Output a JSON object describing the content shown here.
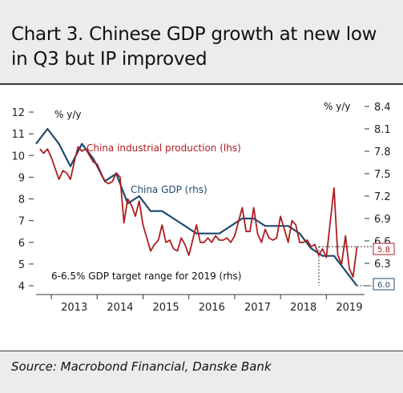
{
  "header": {
    "title": "Chart 3. Chinese GDP growth at new low in Q3 but IP improved"
  },
  "footer": {
    "source": "Source: Macrobond Financial, Danske Bank"
  },
  "colors": {
    "ip_line": "#b01c20",
    "gdp_line": "#1f4a6e",
    "panel_bg": "#ececec"
  },
  "chart_data": {
    "type": "line",
    "title": "Chart 3. Chinese GDP growth at new low in Q3 but IP improved",
    "left_axis": {
      "unit_label": "% y/y",
      "ylim": [
        4,
        12
      ],
      "ticks": [
        "4",
        "5",
        "6",
        "7",
        "8",
        "9",
        "10",
        "11",
        "12"
      ]
    },
    "right_axis": {
      "unit_label": "% y/y",
      "ylim": [
        6.0,
        8.4
      ],
      "ticks": [
        "6.3",
        "6.6",
        "6.9",
        "7.2",
        "7.5",
        "7.8",
        "8.1",
        "8.4"
      ]
    },
    "x_axis": {
      "tick_labels": [
        "2013",
        "2014",
        "2015",
        "2016",
        "2017",
        "2018",
        "2019"
      ],
      "grid": false
    },
    "annotations": {
      "ip_label": "China industrial production (lhs)",
      "gdp_label": "China GDP (rhs)",
      "target_label": "6-6.5% GDP target range for 2019 (rhs)",
      "ip_last_flag": "5.8",
      "gdp_last_flag": "6.0"
    },
    "series": [
      {
        "name": "China industrial production (lhs)",
        "axis": "left",
        "x": [
          "2012-10",
          "2012-11",
          "2012-12",
          "2013-01",
          "2013-03",
          "2013-04",
          "2013-05",
          "2013-06",
          "2013-07",
          "2013-08",
          "2013-09",
          "2013-10",
          "2013-11",
          "2013-12",
          "2014-01",
          "2014-03",
          "2014-04",
          "2014-05",
          "2014-06",
          "2014-07",
          "2014-08",
          "2014-09",
          "2014-10",
          "2014-11",
          "2014-12",
          "2015-01",
          "2015-03",
          "2015-04",
          "2015-05",
          "2015-06",
          "2015-07",
          "2015-08",
          "2015-09",
          "2015-10",
          "2015-11",
          "2015-12",
          "2016-01",
          "2016-03",
          "2016-04",
          "2016-05",
          "2016-06",
          "2016-07",
          "2016-08",
          "2016-09",
          "2016-10",
          "2016-11",
          "2016-12",
          "2017-01",
          "2017-03",
          "2017-04",
          "2017-05",
          "2017-06",
          "2017-07",
          "2017-08",
          "2017-09",
          "2017-10",
          "2017-11",
          "2017-12",
          "2018-01",
          "2018-03",
          "2018-04",
          "2018-05",
          "2018-06",
          "2018-07",
          "2018-08",
          "2018-09",
          "2018-10",
          "2018-11",
          "2018-12",
          "2019-01",
          "2019-03",
          "2019-04",
          "2019-05",
          "2019-06",
          "2019-07",
          "2019-08",
          "2019-09"
        ],
        "values": [
          10.3,
          10.1,
          10.3,
          9.9,
          8.9,
          9.3,
          9.2,
          8.9,
          9.7,
          10.4,
          10.2,
          10.3,
          10.0,
          9.7,
          9.6,
          8.8,
          8.7,
          8.8,
          9.2,
          9.0,
          6.9,
          8.0,
          7.7,
          7.2,
          7.9,
          6.8,
          5.6,
          5.9,
          6.1,
          6.8,
          6.0,
          6.1,
          5.7,
          5.6,
          6.2,
          5.9,
          5.4,
          6.8,
          6.0,
          6.0,
          6.2,
          6.0,
          6.3,
          6.1,
          6.1,
          6.2,
          6.0,
          6.3,
          7.6,
          6.5,
          6.5,
          7.6,
          6.4,
          6.0,
          6.6,
          6.2,
          6.1,
          6.2,
          7.2,
          6.0,
          7.0,
          6.8,
          6.0,
          6.0,
          6.1,
          5.8,
          5.9,
          5.4,
          5.7,
          5.3,
          8.5,
          5.4,
          5.0,
          6.3,
          4.8,
          4.4,
          5.8
        ]
      },
      {
        "name": "China GDP (rhs)",
        "axis": "right",
        "x": [
          "2012-09",
          "2012-12",
          "2013-03",
          "2013-06",
          "2013-09",
          "2013-12",
          "2014-03",
          "2014-06",
          "2014-09",
          "2014-12",
          "2015-03",
          "2015-06",
          "2015-09",
          "2015-12",
          "2016-03",
          "2016-06",
          "2016-09",
          "2016-12",
          "2017-03",
          "2017-06",
          "2017-09",
          "2017-12",
          "2018-03",
          "2018-06",
          "2018-09",
          "2018-12",
          "2019-03",
          "2019-06",
          "2019-09"
        ],
        "values": [
          7.9,
          8.1,
          7.9,
          7.6,
          7.9,
          7.7,
          7.4,
          7.5,
          7.1,
          7.2,
          7.0,
          7.0,
          6.9,
          6.8,
          6.7,
          6.7,
          6.7,
          6.8,
          6.9,
          6.9,
          6.8,
          6.8,
          6.8,
          6.7,
          6.5,
          6.4,
          6.4,
          6.2,
          6.0
        ]
      }
    ]
  }
}
